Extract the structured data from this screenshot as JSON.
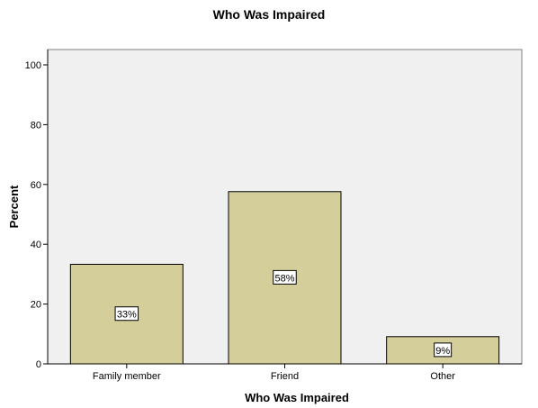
{
  "chart_data": {
    "type": "bar",
    "title": "Who Was Impaired",
    "xlabel": "Who Was Impaired",
    "ylabel": "Percent",
    "categories": [
      "Family member",
      "Friend",
      "Other"
    ],
    "values": [
      33.3,
      57.6,
      9.1
    ],
    "data_labels": [
      "33%",
      "58%",
      "9%"
    ],
    "ylim": [
      0,
      100
    ],
    "yticks": [
      "0",
      "20",
      "40",
      "60",
      "80",
      "100"
    ],
    "grid": false,
    "legend": "none",
    "colors": {
      "bar_fill": "#d3ce9a",
      "plot_background": "#f0f0f0",
      "stroke": "#000000"
    }
  }
}
